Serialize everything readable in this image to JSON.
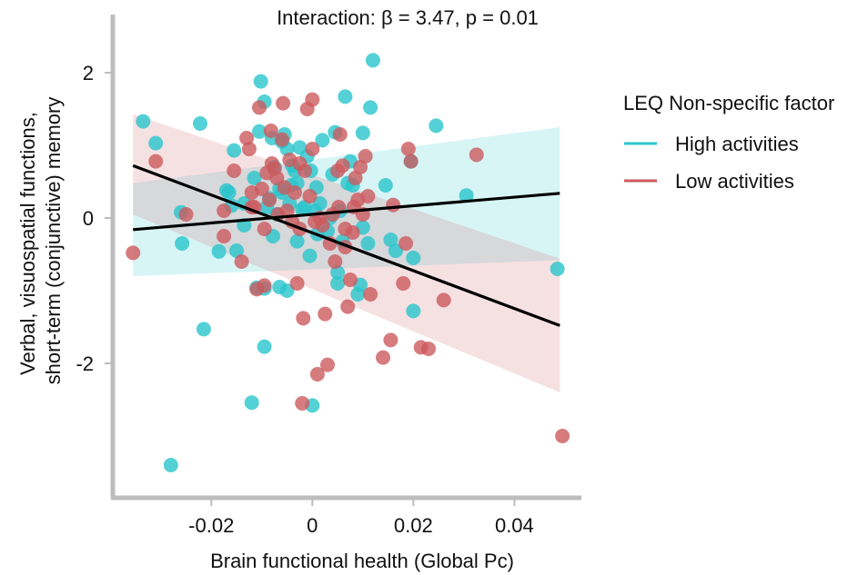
{
  "chart_data": {
    "type": "scatter",
    "title": "Interaction: β  = 3.47, p = 0.01",
    "xlabel": "Brain functional health (Global Pc)",
    "ylabel": [
      "Verbal, visuospatial functions,",
      "short-term (conjunctive) memory"
    ],
    "xlim": [
      -0.0395,
      0.052
    ],
    "ylim": [
      -3.85,
      2.8
    ],
    "x_ticks": [
      -0.02,
      0,
      0.02,
      0.04
    ],
    "x_tick_labels": [
      "-0.02",
      "0",
      "0.02",
      "0.04"
    ],
    "y_ticks": [
      -2,
      0,
      2
    ],
    "y_tick_labels": [
      "-2",
      "0",
      "2"
    ],
    "grid": false,
    "legend": {
      "title": "LEQ Non-specific factor",
      "position": "right"
    },
    "series": [
      {
        "name": "High activities",
        "color": "#28c6cc",
        "points": [
          [
            -0.0335,
            1.33
          ],
          [
            -0.031,
            1.03
          ],
          [
            -0.026,
            0.08
          ],
          [
            -0.0258,
            -0.35
          ],
          [
            -0.0222,
            1.3
          ],
          [
            -0.0215,
            -1.53
          ],
          [
            -0.0185,
            -0.46
          ],
          [
            -0.017,
            0.38
          ],
          [
            -0.0165,
            0.35
          ],
          [
            -0.016,
            0.17
          ],
          [
            -0.0155,
            0.93
          ],
          [
            -0.015,
            -0.45
          ],
          [
            -0.0135,
            0.2
          ],
          [
            -0.012,
            -2.54
          ],
          [
            -0.0115,
            0.55
          ],
          [
            -0.011,
            -0.96
          ],
          [
            -0.0105,
            1.19
          ],
          [
            -0.0102,
            1.88
          ],
          [
            -0.0095,
            1.6
          ],
          [
            -0.0095,
            -1.77
          ],
          [
            -0.0095,
            -0.97
          ],
          [
            -0.009,
            0.15
          ],
          [
            -0.0085,
            0.27
          ],
          [
            -0.008,
            1.1
          ],
          [
            -0.0078,
            -0.25
          ],
          [
            -0.0075,
            0.7
          ],
          [
            -0.007,
            0.05
          ],
          [
            -0.0065,
            -0.95
          ],
          [
            -0.006,
            1.05
          ],
          [
            -0.006,
            0.35
          ],
          [
            -0.0055,
            1.15
          ],
          [
            -0.005,
            0.95
          ],
          [
            -0.005,
            -1.0
          ],
          [
            -0.0045,
            0.2
          ],
          [
            -0.0042,
            0.45
          ],
          [
            -0.004,
            0.72
          ],
          [
            -0.0035,
            0.65
          ],
          [
            -0.003,
            -0.32
          ],
          [
            -0.003,
            0.48
          ],
          [
            -0.0025,
            0.97
          ],
          [
            -0.002,
            0.12
          ],
          [
            -0.0015,
            0.15
          ],
          [
            -0.001,
            0.85
          ],
          [
            -0.0005,
            -0.52
          ],
          [
            -0.0003,
            0.65
          ],
          [
            0.0,
            -2.58
          ],
          [
            0.0005,
            0.1
          ],
          [
            0.0008,
            0.42
          ],
          [
            0.001,
            -0.22
          ],
          [
            0.002,
            1.07
          ],
          [
            0.003,
            -0.18
          ],
          [
            0.004,
            0.6
          ],
          [
            0.0045,
            1.18
          ],
          [
            0.005,
            -0.75
          ],
          [
            0.005,
            -0.9
          ],
          [
            0.0055,
            0.1
          ],
          [
            0.006,
            -0.32
          ],
          [
            0.0065,
            1.67
          ],
          [
            0.007,
            0.48
          ],
          [
            0.0075,
            0.78
          ],
          [
            0.008,
            0.45
          ],
          [
            0.009,
            -1.05
          ],
          [
            0.0095,
            -0.92
          ],
          [
            0.01,
            1.17
          ],
          [
            0.01,
            -0.13
          ],
          [
            0.011,
            -0.35
          ],
          [
            0.0115,
            1.52
          ],
          [
            0.012,
            2.17
          ],
          [
            0.0145,
            0.45
          ],
          [
            0.0155,
            -0.3
          ],
          [
            0.0165,
            -0.45
          ],
          [
            0.0195,
            0.78
          ],
          [
            0.02,
            -0.55
          ],
          [
            0.02,
            -1.28
          ],
          [
            0.0245,
            1.27
          ],
          [
            0.0305,
            0.31
          ],
          [
            0.0485,
            -0.7
          ],
          [
            -0.028,
            -3.4
          ],
          [
            -0.0065,
            0.4
          ],
          [
            0.0035,
            0.0
          ],
          [
            -0.0135,
            -0.1
          ],
          [
            0.0015,
            0.2
          ]
        ]
      },
      {
        "name": "Low activities",
        "color": "#cc5a5e",
        "points": [
          [
            -0.0355,
            -0.48
          ],
          [
            -0.031,
            0.78
          ],
          [
            -0.025,
            0.05
          ],
          [
            -0.0175,
            0.1
          ],
          [
            -0.0155,
            0.65
          ],
          [
            -0.014,
            -0.6
          ],
          [
            -0.013,
            1.1
          ],
          [
            -0.0125,
            0.95
          ],
          [
            -0.012,
            0.35
          ],
          [
            -0.0115,
            0.15
          ],
          [
            -0.011,
            -0.98
          ],
          [
            -0.0105,
            1.52
          ],
          [
            -0.01,
            0.4
          ],
          [
            -0.0095,
            -0.93
          ],
          [
            -0.009,
            0.62
          ],
          [
            -0.0085,
            0.25
          ],
          [
            -0.0082,
            1.2
          ],
          [
            -0.008,
            0.75
          ],
          [
            -0.0075,
            0.68
          ],
          [
            -0.007,
            0.55
          ],
          [
            -0.0068,
            0.05
          ],
          [
            -0.006,
            1.08
          ],
          [
            -0.0058,
            1.58
          ],
          [
            -0.0055,
            0.42
          ],
          [
            -0.005,
            0.1
          ],
          [
            -0.0045,
            0.8
          ],
          [
            -0.004,
            -0.05
          ],
          [
            -0.0035,
            0.35
          ],
          [
            -0.003,
            -0.9
          ],
          [
            -0.0025,
            0.75
          ],
          [
            -0.002,
            -2.55
          ],
          [
            -0.0018,
            -1.38
          ],
          [
            -0.0015,
            0.65
          ],
          [
            -0.001,
            1.5
          ],
          [
            -0.0005,
            0.3
          ],
          [
            0.0,
            0.95
          ],
          [
            0.0,
            1.63
          ],
          [
            0.0005,
            -0.05
          ],
          [
            0.001,
            -2.15
          ],
          [
            0.0015,
            0.0
          ],
          [
            0.002,
            -0.1
          ],
          [
            0.0025,
            -1.32
          ],
          [
            0.003,
            -2.02
          ],
          [
            0.0035,
            -0.35
          ],
          [
            0.004,
            0.05
          ],
          [
            0.0045,
            -0.6
          ],
          [
            0.005,
            0.65
          ],
          [
            0.0052,
            0.15
          ],
          [
            0.0055,
            1.15
          ],
          [
            0.006,
            0.72
          ],
          [
            0.0065,
            -0.4
          ],
          [
            0.007,
            -1.22
          ],
          [
            0.0075,
            -0.85
          ],
          [
            0.008,
            -0.2
          ],
          [
            0.0082,
            0.15
          ],
          [
            0.0085,
            0.55
          ],
          [
            0.009,
            0.25
          ],
          [
            0.0095,
            0.7
          ],
          [
            0.01,
            0.05
          ],
          [
            0.0105,
            0.85
          ],
          [
            0.011,
            0.3
          ],
          [
            0.0115,
            -1.05
          ],
          [
            0.014,
            -1.92
          ],
          [
            0.0155,
            -1.68
          ],
          [
            0.016,
            0.18
          ],
          [
            0.018,
            -0.9
          ],
          [
            0.0185,
            -0.35
          ],
          [
            0.019,
            0.95
          ],
          [
            0.0195,
            0.78
          ],
          [
            0.0215,
            -1.78
          ],
          [
            0.023,
            -1.8
          ],
          [
            0.026,
            -1.13
          ],
          [
            0.0325,
            0.87
          ],
          [
            0.0495,
            -3.0
          ],
          [
            -0.0175,
            -0.25
          ],
          [
            -0.0095,
            -0.15
          ],
          [
            0.0065,
            -0.15
          ],
          [
            -0.0025,
            -0.15
          ],
          [
            -0.012,
            0.15
          ]
        ]
      }
    ],
    "fits": [
      {
        "series": "High activities",
        "x": [
          -0.0355,
          0.049
        ],
        "y": [
          -0.16,
          0.34
        ],
        "ci_lower": [
          -0.8,
          -0.58
        ],
        "ci_upper": [
          0.48,
          1.25
        ]
      },
      {
        "series": "Low activities",
        "x": [
          -0.0355,
          0.049
        ],
        "y": [
          0.72,
          -1.48
        ],
        "ci_lower": [
          0.05,
          -2.4
        ],
        "ci_upper": [
          1.43,
          -0.56
        ]
      }
    ]
  }
}
